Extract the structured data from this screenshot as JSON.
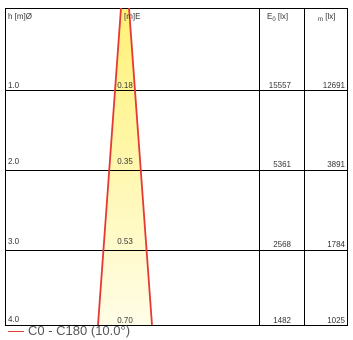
{
  "headers": {
    "height": "h [m]Ø",
    "diameter": "[m]E",
    "e0": "E",
    "e0_sub": "0",
    "e0_unit": " [lx]",
    "em": "m",
    "em_unit": " [lx]"
  },
  "rows": [
    {
      "h": "1.0",
      "d": "0.18",
      "e0": "15557",
      "em": "12691"
    },
    {
      "h": "2.0",
      "d": "0.35",
      "e0": "5361",
      "em": "3891"
    },
    {
      "h": "3.0",
      "d": "0.53",
      "e0": "2568",
      "em": "1784"
    },
    {
      "h": "4.0",
      "d": "0.70",
      "e0": "1482",
      "em": "1025"
    }
  ],
  "legend": {
    "label": "C0 - C180 (10.0°)"
  },
  "colors": {
    "beam_line": "#e53935",
    "beam_fill_top": "#fff176",
    "beam_fill_bottom": "#fffde7",
    "grid": "#000000"
  }
}
